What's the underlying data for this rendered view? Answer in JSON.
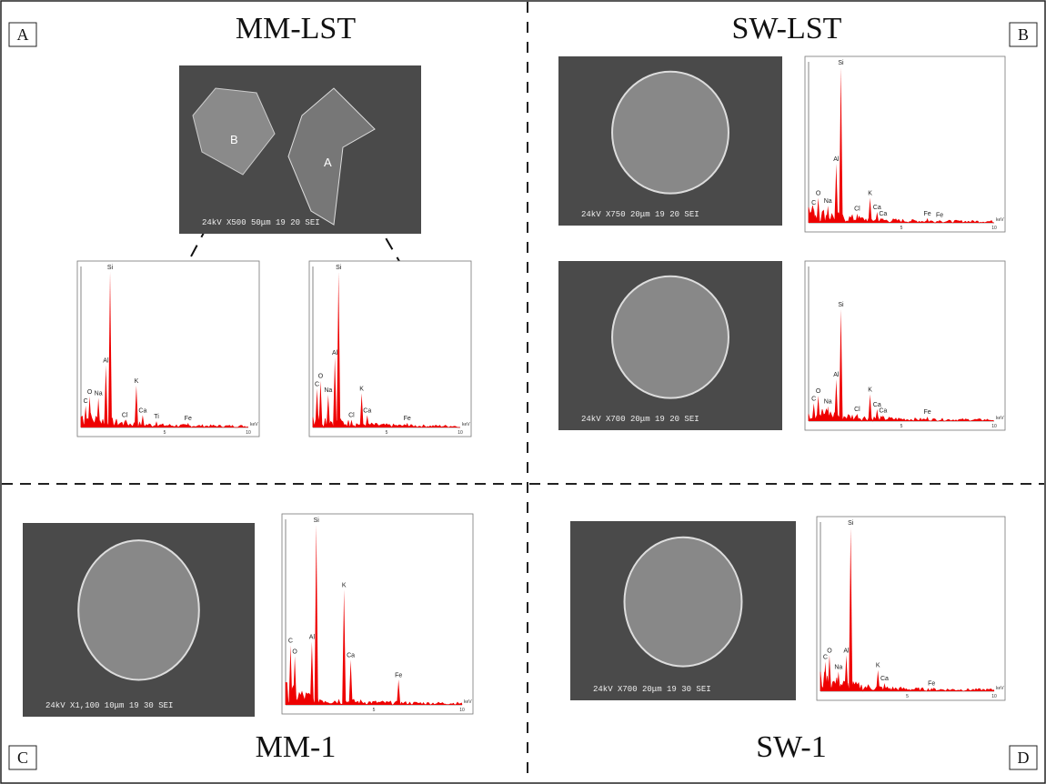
{
  "energy_unit": "keV",
  "x_ticks": [
    "5",
    "10"
  ],
  "panels": [
    {
      "label": "A",
      "title": "MM-LST",
      "images": [
        {
          "caption": "24kV   X500  50μm   19 20 SEI",
          "markers": [
            "B",
            "A"
          ]
        }
      ],
      "spectra": [
        {
          "peaks": [
            "C",
            "O",
            "Na",
            "Al",
            "Si",
            "Cl",
            "K",
            "Ca",
            "Ti",
            "Fe"
          ]
        },
        {
          "peaks": [
            "C",
            "O",
            "Na",
            "Al",
            "Si",
            "Cl",
            "K",
            "Ca",
            "Fe"
          ]
        }
      ]
    },
    {
      "label": "B",
      "title": "SW-LST",
      "images": [
        {
          "caption": "24kV   X750  20μm   19 20 SEI",
          "markers": []
        },
        {
          "caption": "24kV   X700  20μm   19 20 SEI",
          "markers": []
        }
      ],
      "spectra": [
        {
          "peaks": [
            "C",
            "O",
            "Na",
            "Al",
            "Si",
            "Cl",
            "K",
            "Ca",
            "Ca",
            "Fe",
            "Fe"
          ]
        },
        {
          "peaks": [
            "C",
            "O",
            "Na",
            "Al",
            "Si",
            "Cl",
            "K",
            "Ca",
            "Ca",
            "Fe"
          ]
        }
      ]
    },
    {
      "label": "C",
      "title": "MM-1",
      "images": [
        {
          "caption": "24kV  X1,100  10μm   19 30 SEI",
          "markers": []
        }
      ],
      "spectra": [
        {
          "peaks": [
            "C",
            "O",
            "Al",
            "Si",
            "K",
            "Ca",
            "Fe"
          ]
        }
      ]
    },
    {
      "label": "D",
      "title": "SW-1",
      "images": [
        {
          "caption": "24kV   X700  20μm   19 30 SEI",
          "markers": []
        }
      ],
      "spectra": [
        {
          "peaks": [
            "C",
            "O",
            "Na",
            "Al",
            "Si",
            "K",
            "Ca",
            "Fe"
          ]
        }
      ]
    }
  ]
}
